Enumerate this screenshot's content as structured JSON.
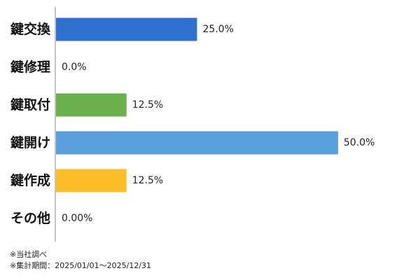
{
  "chart_data": {
    "type": "bar",
    "orientation": "horizontal",
    "categories": [
      "鍵交換",
      "鍵修理",
      "鍵取付",
      "鍵開け",
      "鍵作成",
      "その他"
    ],
    "values": [
      25.0,
      0.0,
      12.5,
      50.0,
      12.5,
      0.0
    ],
    "value_labels": [
      "25.0%",
      "0.0%",
      "12.5%",
      "50.0%",
      "12.5%",
      "0.00%"
    ],
    "bar_colors": [
      "#2f6fce",
      "#2f6fce",
      "#6ab04c",
      "#5aa0dc",
      "#fbbd28",
      "#cccccc"
    ],
    "title": "",
    "xlabel": "",
    "ylabel": "",
    "xlim": [
      0,
      50
    ],
    "grid": false,
    "legend": "none"
  },
  "notes": {
    "line1": "※当社調べ",
    "line2": "※集計期間：2025/01/01〜2025/12/31"
  }
}
